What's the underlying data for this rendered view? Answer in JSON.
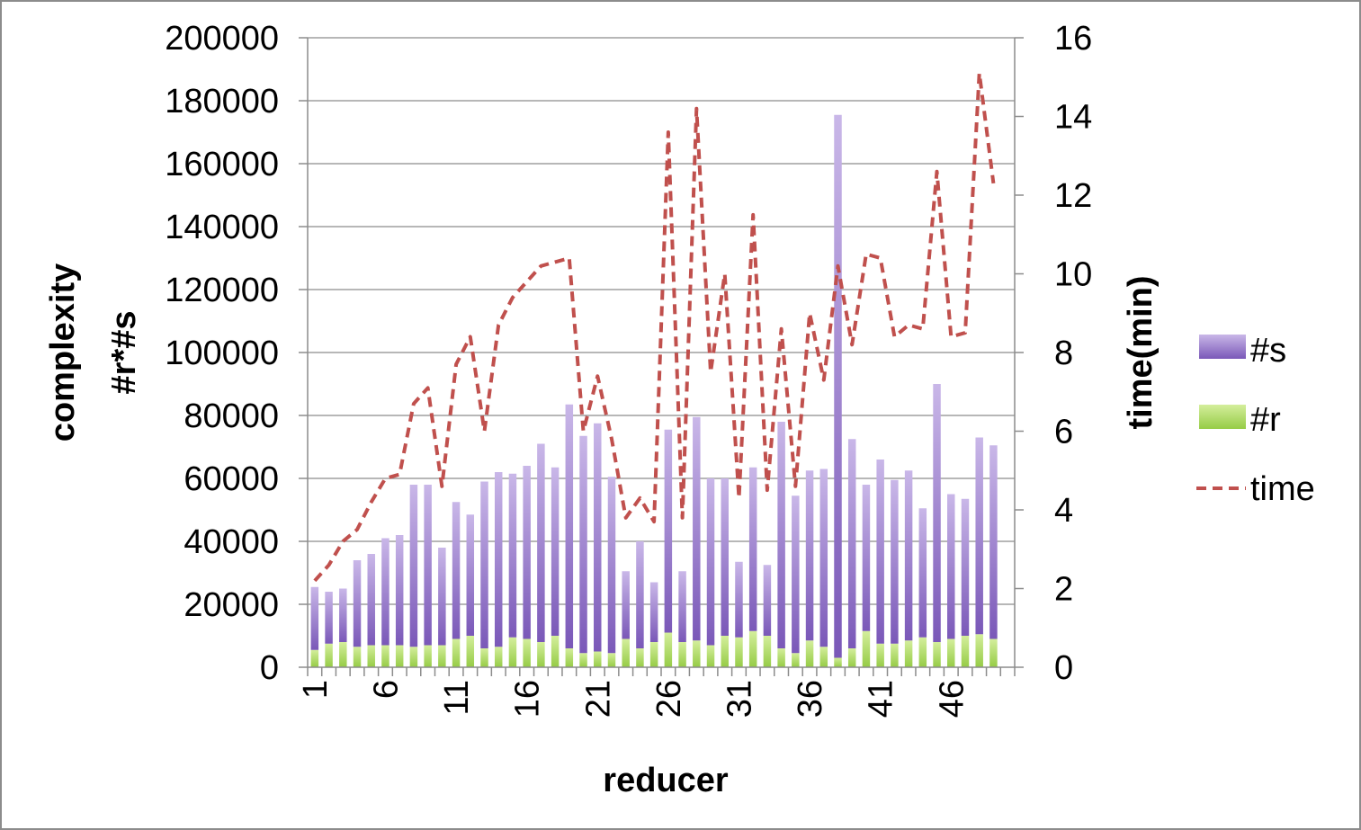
{
  "chart_data": {
    "type": "bar",
    "stacked": true,
    "x": [
      1,
      2,
      3,
      4,
      5,
      6,
      7,
      8,
      9,
      10,
      11,
      12,
      13,
      14,
      15,
      16,
      17,
      18,
      19,
      20,
      21,
      22,
      23,
      24,
      25,
      26,
      27,
      28,
      29,
      30,
      31,
      32,
      33,
      34,
      35,
      36,
      37,
      38,
      39,
      40,
      41,
      42,
      43,
      44,
      45,
      46,
      47,
      48,
      49,
      50
    ],
    "x_tick_labels": [
      "1",
      "6",
      "11",
      "16",
      "21",
      "26",
      "31",
      "36",
      "41",
      "46"
    ],
    "xlabel": "reducer",
    "ylabel": "complexity\n#r*#s",
    "ylabel_lines": [
      "complexity",
      "#r*#s"
    ],
    "y2label": "time(min)",
    "ylim": [
      0,
      200000
    ],
    "y_ticks": [
      "0",
      "20000",
      "40000",
      "60000",
      "80000",
      "100000",
      "120000",
      "140000",
      "160000",
      "180000",
      "200000"
    ],
    "y2lim": [
      0,
      16
    ],
    "y2_ticks": [
      "0",
      "2",
      "4",
      "6",
      "8",
      "10",
      "12",
      "14",
      "16"
    ],
    "grid": true,
    "legend_position": "right",
    "series": [
      {
        "name": "#r",
        "kind": "bar",
        "axis": "left",
        "color": "#a8d85a",
        "values": [
          5500,
          7500,
          8000,
          6500,
          7000,
          7000,
          7000,
          6500,
          7000,
          7000,
          9000,
          10000,
          6000,
          6500,
          9500,
          9000,
          8000,
          10000,
          6000,
          4500,
          5000,
          4500,
          9000,
          6000,
          8000,
          11000,
          8000,
          8500,
          7000,
          10000,
          9500,
          11500,
          10000,
          6000,
          4500,
          8500,
          6500,
          3000,
          6000,
          11500,
          7500,
          7500,
          8500,
          9500,
          8000,
          9000,
          10000,
          10500,
          9000,
          0
        ]
      },
      {
        "name": "#s",
        "kind": "bar",
        "axis": "left",
        "color": "#8c6cc4",
        "values": [
          20000,
          16500,
          17000,
          27500,
          29000,
          34000,
          35000,
          51500,
          51000,
          31000,
          43500,
          38500,
          53000,
          55500,
          52000,
          55000,
          63000,
          53500,
          77500,
          69000,
          72500,
          56000,
          21500,
          34000,
          19000,
          64500,
          22500,
          71000,
          53000,
          50000,
          24000,
          52000,
          22500,
          72000,
          50000,
          54000,
          56500,
          172500,
          66500,
          46500,
          58500,
          52000,
          54000,
          41000,
          82000,
          46000,
          43500,
          62500,
          61500,
          0
        ]
      },
      {
        "name": "time",
        "kind": "line",
        "axis": "right",
        "style": "dashed",
        "color": "#c0504d",
        "values": [
          2.2,
          2.6,
          3.2,
          3.5,
          4.2,
          4.8,
          4.9,
          6.7,
          7.1,
          4.6,
          7.7,
          8.4,
          6.0,
          8.7,
          9.4,
          9.8,
          10.2,
          10.3,
          10.4,
          6.0,
          7.4,
          5.8,
          3.8,
          4.3,
          3.7,
          13.6,
          3.8,
          14.2,
          7.5,
          10.0,
          4.3,
          11.5,
          4.5,
          8.6,
          4.6,
          9.0,
          7.3,
          10.2,
          8.2,
          10.5,
          10.4,
          8.4,
          8.7,
          8.6,
          12.6,
          8.4,
          8.5,
          15.1,
          12.3,
          null
        ]
      }
    ]
  }
}
